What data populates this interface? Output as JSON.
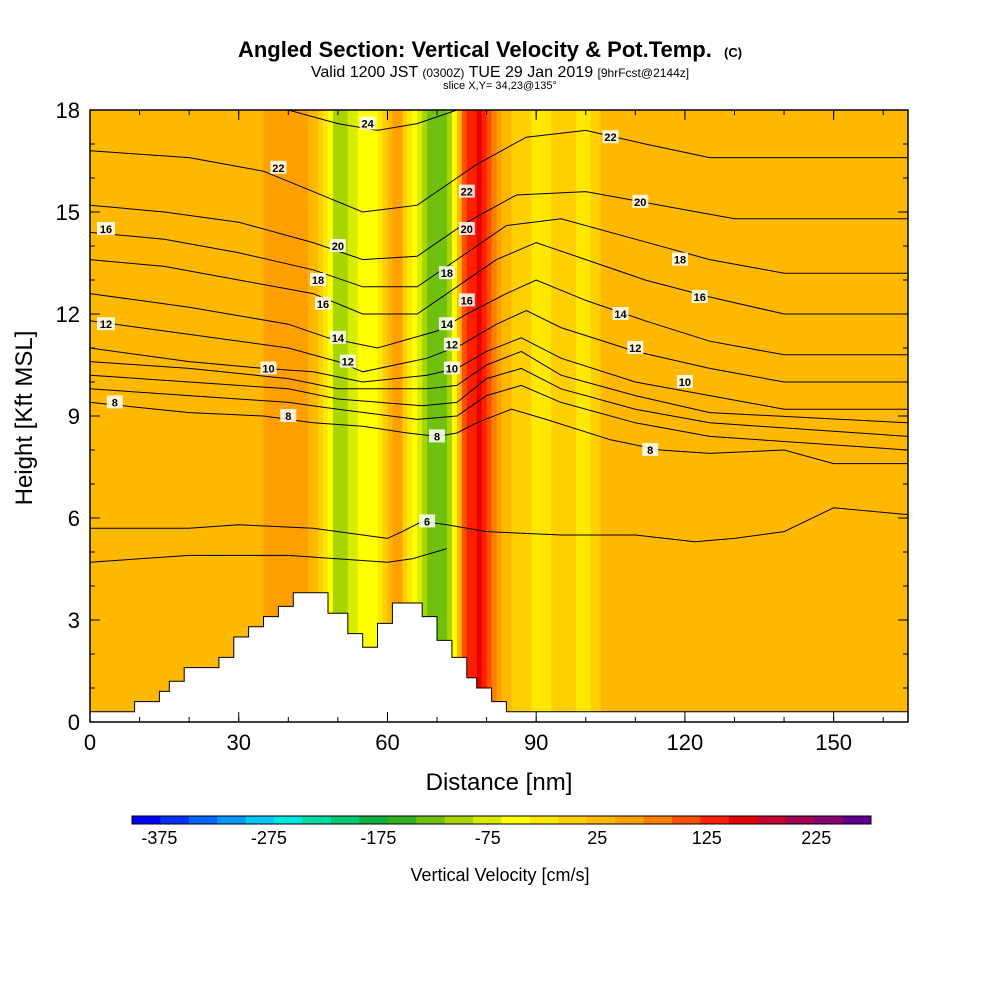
{
  "title": {
    "main": "Angled Section: Vertical Velocity & Pot.Temp.",
    "main_unit": "(C)",
    "valid_prefix": "Valid 1200 JST",
    "valid_utc": "(0300Z)",
    "valid_date": "TUE 29 Jan 2019",
    "forecast": "[9hrFcst@2144z]",
    "slice": "slice X,Y= 34,23@135°"
  },
  "chart_data": {
    "type": "heatmap",
    "xlabel": "Distance [nm]",
    "ylabel": "Height [Kft MSL]",
    "xlim": [
      0,
      165
    ],
    "ylim": [
      0,
      18
    ],
    "x_ticks": [
      0,
      30,
      60,
      90,
      120,
      150
    ],
    "y_ticks": [
      0,
      3,
      6,
      9,
      12,
      15,
      18
    ],
    "colorbar": {
      "title": "Vertical Velocity [cm/s]",
      "ticks": [
        -375,
        -275,
        -175,
        -75,
        25,
        125,
        225
      ],
      "min": -400,
      "max": 275,
      "colors": [
        "#0000ff",
        "#0033ff",
        "#0066ff",
        "#0099ff",
        "#00c8ff",
        "#00e8e0",
        "#00d8a0",
        "#00c870",
        "#10b040",
        "#30b020",
        "#70c010",
        "#a8d400",
        "#d8ec00",
        "#ffff00",
        "#ffe800",
        "#ffd000",
        "#ffb800",
        "#ffa000",
        "#ff8000",
        "#ff5000",
        "#ff2000",
        "#e80000",
        "#c80030",
        "#a00050",
        "#880070",
        "#600090"
      ]
    },
    "velocity_bands": [
      {
        "x": 0,
        "v": 25
      },
      {
        "x": 15,
        "v": 25
      },
      {
        "x": 22,
        "v": 40
      },
      {
        "x": 30,
        "v": 20
      },
      {
        "x": 38,
        "v": 55
      },
      {
        "x": 44,
        "v": 50
      },
      {
        "x": 48,
        "v": -40
      },
      {
        "x": 50,
        "v": -110
      },
      {
        "x": 52,
        "v": -100
      },
      {
        "x": 55,
        "v": -30
      },
      {
        "x": 57,
        "v": -70
      },
      {
        "x": 60,
        "v": 25
      },
      {
        "x": 62,
        "v": 60
      },
      {
        "x": 64,
        "v": 0
      },
      {
        "x": 67,
        "v": -80
      },
      {
        "x": 70,
        "v": -150
      },
      {
        "x": 73,
        "v": -90
      },
      {
        "x": 75,
        "v": 80
      },
      {
        "x": 77,
        "v": 140
      },
      {
        "x": 79,
        "v": 150
      },
      {
        "x": 82,
        "v": 60
      },
      {
        "x": 86,
        "v": 0
      },
      {
        "x": 92,
        "v": -20
      },
      {
        "x": 96,
        "v": 10
      },
      {
        "x": 100,
        "v": -40
      },
      {
        "x": 103,
        "v": 20
      },
      {
        "x": 110,
        "v": 25
      },
      {
        "x": 125,
        "v": 30
      },
      {
        "x": 140,
        "v": 25
      },
      {
        "x": 150,
        "v": 30
      },
      {
        "x": 165,
        "v": 25
      }
    ],
    "terrain": [
      [
        0,
        0.3
      ],
      [
        9,
        0.3
      ],
      [
        9,
        0.6
      ],
      [
        14,
        0.6
      ],
      [
        14,
        0.9
      ],
      [
        16,
        0.9
      ],
      [
        16,
        1.2
      ],
      [
        19,
        1.2
      ],
      [
        19,
        1.6
      ],
      [
        26,
        1.6
      ],
      [
        26,
        1.9
      ],
      [
        29,
        1.9
      ],
      [
        29,
        2.5
      ],
      [
        32,
        2.5
      ],
      [
        32,
        2.8
      ],
      [
        35,
        2.8
      ],
      [
        35,
        3.1
      ],
      [
        38,
        3.1
      ],
      [
        38,
        3.4
      ],
      [
        41,
        3.4
      ],
      [
        41,
        3.8
      ],
      [
        48,
        3.8
      ],
      [
        48,
        3.2
      ],
      [
        52,
        3.2
      ],
      [
        52,
        2.6
      ],
      [
        55,
        2.6
      ],
      [
        55,
        2.2
      ],
      [
        58,
        2.2
      ],
      [
        58,
        2.9
      ],
      [
        61,
        2.9
      ],
      [
        61,
        3.5
      ],
      [
        67,
        3.5
      ],
      [
        67,
        3.1
      ],
      [
        70,
        3.1
      ],
      [
        70,
        2.4
      ],
      [
        73,
        2.4
      ],
      [
        73,
        1.9
      ],
      [
        76,
        1.9
      ],
      [
        76,
        1.3
      ],
      [
        78,
        1.3
      ],
      [
        78,
        1.0
      ],
      [
        81,
        1.0
      ],
      [
        81,
        0.6
      ],
      [
        84,
        0.6
      ],
      [
        84,
        0.3
      ],
      [
        165,
        0.3
      ]
    ],
    "isentropes": [
      {
        "label": "6",
        "points": [
          [
            0,
            5.7
          ],
          [
            20,
            5.7
          ],
          [
            30,
            5.8
          ],
          [
            45,
            5.7
          ],
          [
            60,
            5.4
          ],
          [
            63,
            5.6
          ],
          [
            67,
            5.9
          ],
          [
            72,
            5.8
          ],
          [
            80,
            5.6
          ],
          [
            95,
            5.5
          ],
          [
            110,
            5.5
          ],
          [
            122,
            5.3
          ],
          [
            130,
            5.4
          ],
          [
            140,
            5.6
          ],
          [
            150,
            6.3
          ],
          [
            165,
            6.1
          ]
        ],
        "labels": [
          [
            68,
            5.9
          ]
        ]
      },
      {
        "label": "",
        "points": [
          [
            0,
            4.7
          ],
          [
            20,
            4.9
          ],
          [
            40,
            4.9
          ],
          [
            60,
            4.7
          ],
          [
            65,
            4.8
          ],
          [
            72,
            5.1
          ]
        ],
        "labels": []
      },
      {
        "label": "8",
        "points": [
          [
            0,
            9.4
          ],
          [
            20,
            9.1
          ],
          [
            35,
            9.0
          ],
          [
            45,
            8.8
          ],
          [
            55,
            8.7
          ],
          [
            64,
            8.5
          ],
          [
            70,
            8.4
          ],
          [
            74,
            8.5
          ],
          [
            78,
            8.8
          ],
          [
            85,
            9.2
          ],
          [
            92,
            8.9
          ],
          [
            105,
            8.3
          ],
          [
            115,
            8.0
          ],
          [
            125,
            7.9
          ],
          [
            140,
            8.0
          ],
          [
            150,
            7.6
          ],
          [
            165,
            7.6
          ]
        ],
        "labels": [
          [
            5,
            9.4
          ],
          [
            40,
            9.0
          ],
          [
            70,
            8.4
          ],
          [
            113,
            8.0
          ]
        ]
      },
      {
        "label": "",
        "points": [
          [
            0,
            9.8
          ],
          [
            20,
            9.6
          ],
          [
            40,
            9.4
          ],
          [
            50,
            9.2
          ],
          [
            66,
            8.9
          ],
          [
            74,
            9.0
          ],
          [
            80,
            9.6
          ],
          [
            87,
            9.9
          ],
          [
            95,
            9.4
          ],
          [
            110,
            8.8
          ],
          [
            125,
            8.4
          ],
          [
            165,
            8.0
          ]
        ],
        "labels": []
      },
      {
        "label": "",
        "points": [
          [
            0,
            10.2
          ],
          [
            20,
            10.0
          ],
          [
            40,
            9.8
          ],
          [
            50,
            9.5
          ],
          [
            67,
            9.3
          ],
          [
            74,
            9.4
          ],
          [
            80,
            10.1
          ],
          [
            87,
            10.4
          ],
          [
            95,
            9.8
          ],
          [
            110,
            9.2
          ],
          [
            125,
            8.8
          ],
          [
            165,
            8.4
          ]
        ],
        "labels": []
      },
      {
        "label": "",
        "points": [
          [
            0,
            10.6
          ],
          [
            20,
            10.4
          ],
          [
            40,
            10.1
          ],
          [
            50,
            9.8
          ],
          [
            68,
            9.8
          ],
          [
            74,
            9.9
          ],
          [
            80,
            10.5
          ],
          [
            87,
            10.9
          ],
          [
            95,
            10.2
          ],
          [
            110,
            9.6
          ],
          [
            125,
            9.1
          ],
          [
            165,
            8.8
          ]
        ],
        "labels": []
      },
      {
        "label": "10",
        "points": [
          [
            0,
            11.0
          ],
          [
            20,
            10.6
          ],
          [
            35,
            10.4
          ],
          [
            45,
            10.3
          ],
          [
            55,
            10.0
          ],
          [
            68,
            10.2
          ],
          [
            74,
            10.4
          ],
          [
            80,
            10.9
          ],
          [
            87,
            11.3
          ],
          [
            95,
            10.7
          ],
          [
            110,
            10.0
          ],
          [
            125,
            9.6
          ],
          [
            140,
            9.2
          ],
          [
            165,
            9.2
          ]
        ],
        "labels": [
          [
            36,
            10.4
          ],
          [
            73,
            10.4
          ],
          [
            120,
            10.0
          ]
        ]
      },
      {
        "label": "12",
        "points": [
          [
            0,
            11.8
          ],
          [
            20,
            11.4
          ],
          [
            40,
            11.0
          ],
          [
            50,
            10.6
          ],
          [
            55,
            10.3
          ],
          [
            68,
            10.7
          ],
          [
            75,
            11.1
          ],
          [
            82,
            11.7
          ],
          [
            88,
            12.1
          ],
          [
            95,
            11.6
          ],
          [
            110,
            10.9
          ],
          [
            125,
            10.4
          ],
          [
            140,
            10.0
          ],
          [
            165,
            10.0
          ]
        ],
        "labels": [
          [
            52,
            10.6
          ],
          [
            73,
            11.1
          ],
          [
            110,
            11.0
          ]
        ]
      },
      {
        "label": "14",
        "points": [
          [
            0,
            12.6
          ],
          [
            20,
            12.2
          ],
          [
            40,
            11.7
          ],
          [
            48,
            11.3
          ],
          [
            58,
            11.0
          ],
          [
            70,
            11.5
          ],
          [
            76,
            12.0
          ],
          [
            84,
            12.6
          ],
          [
            90,
            13.0
          ],
          [
            100,
            12.4
          ],
          [
            112,
            11.8
          ],
          [
            125,
            11.2
          ],
          [
            140,
            10.8
          ],
          [
            165,
            10.8
          ]
        ],
        "labels": [
          [
            50,
            11.3
          ],
          [
            72,
            11.7
          ],
          [
            107,
            12.0
          ]
        ]
      },
      {
        "label": "16",
        "points": [
          [
            0,
            13.6
          ],
          [
            15,
            13.4
          ],
          [
            30,
            13.0
          ],
          [
            45,
            12.6
          ],
          [
            55,
            12.0
          ],
          [
            66,
            12.0
          ],
          [
            74,
            12.8
          ],
          [
            82,
            13.6
          ],
          [
            90,
            14.1
          ],
          [
            100,
            13.6
          ],
          [
            112,
            13.0
          ],
          [
            125,
            12.5
          ],
          [
            140,
            12.0
          ],
          [
            165,
            12.0
          ]
        ],
        "labels": [
          [
            47,
            12.3
          ],
          [
            76,
            12.4
          ],
          [
            123,
            12.5
          ]
        ]
      },
      {
        "label": "18",
        "points": [
          [
            0,
            14.4
          ],
          [
            15,
            14.2
          ],
          [
            30,
            13.8
          ],
          [
            45,
            13.3
          ],
          [
            55,
            12.8
          ],
          [
            66,
            12.8
          ],
          [
            74,
            13.6
          ],
          [
            84,
            14.6
          ],
          [
            95,
            14.8
          ],
          [
            110,
            14.2
          ],
          [
            125,
            13.6
          ],
          [
            140,
            13.2
          ],
          [
            165,
            13.2
          ]
        ],
        "labels": [
          [
            46,
            13.0
          ],
          [
            72,
            13.2
          ],
          [
            119,
            13.6
          ]
        ]
      },
      {
        "label": "20",
        "points": [
          [
            0,
            15.2
          ],
          [
            15,
            15.0
          ],
          [
            30,
            14.7
          ],
          [
            45,
            14.1
          ],
          [
            55,
            13.6
          ],
          [
            66,
            13.7
          ],
          [
            76,
            14.7
          ],
          [
            86,
            15.5
          ],
          [
            100,
            15.6
          ],
          [
            115,
            15.2
          ],
          [
            130,
            14.8
          ],
          [
            165,
            14.8
          ]
        ],
        "labels": [
          [
            50,
            14.0
          ],
          [
            76,
            14.5
          ],
          [
            111,
            15.3
          ]
        ]
      },
      {
        "label": "22",
        "points": [
          [
            0,
            16.8
          ],
          [
            20,
            16.6
          ],
          [
            35,
            16.2
          ],
          [
            45,
            15.6
          ],
          [
            55,
            15.0
          ],
          [
            66,
            15.2
          ],
          [
            78,
            16.4
          ],
          [
            88,
            17.2
          ],
          [
            100,
            17.4
          ],
          [
            112,
            17.0
          ],
          [
            125,
            16.6
          ],
          [
            140,
            16.6
          ],
          [
            165,
            16.6
          ]
        ],
        "labels": [
          [
            38,
            16.3
          ],
          [
            76,
            15.6
          ],
          [
            105,
            17.2
          ]
        ]
      },
      {
        "label": "24",
        "points": [
          [
            40,
            18.0
          ],
          [
            50,
            17.6
          ],
          [
            58,
            17.4
          ],
          [
            66,
            17.6
          ],
          [
            74,
            18.0
          ]
        ],
        "labels": [
          [
            56,
            17.6
          ]
        ]
      }
    ],
    "left_labels": [
      {
        "label": "16",
        "y": 14.5
      },
      {
        "label": "12",
        "y": 11.7
      }
    ]
  }
}
